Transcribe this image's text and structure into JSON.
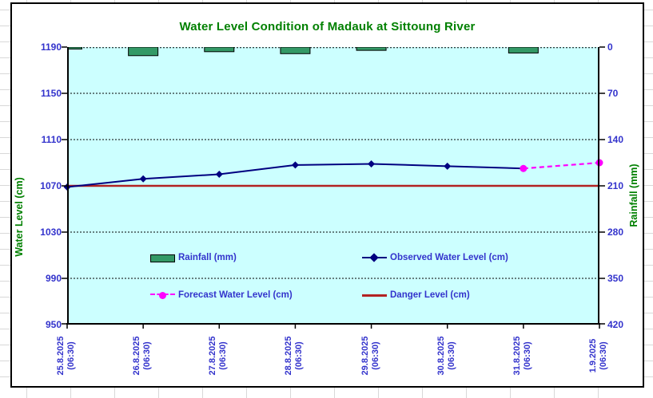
{
  "colors": {
    "title": "#008000",
    "axis_title": "#008000",
    "tick_label": "#3333CC",
    "legend_text": "#3333CC",
    "sheet_gridline": "#D8D8D8",
    "plot_background": "#CCFFFF",
    "rainfall_bar": "#339966",
    "observed_line": "#000080",
    "forecast_line": "#FF00FF",
    "danger_line": "#B22222"
  },
  "chart_data": {
    "type": "combo",
    "title": "Water Level Condition of Madauk at Sittoung River",
    "legend_position": "inside-plot",
    "grid": "horizontal-dashed",
    "categories": [
      {
        "date": "25.8.2025",
        "time": "(06:30)"
      },
      {
        "date": "26.8.2025",
        "time": "(06:30)"
      },
      {
        "date": "27.8.2025",
        "time": "(06:30)"
      },
      {
        "date": "28.8.2025",
        "time": "(06:30)"
      },
      {
        "date": "29.8.2025",
        "time": "(06:30)"
      },
      {
        "date": "30.8.2025",
        "time": "(06:30)"
      },
      {
        "date": "31.8.2025",
        "time": "(06:30)"
      },
      {
        "date": "1.9.2025",
        "time": "(06:30)"
      }
    ],
    "left_axis": {
      "title": "Water Level (cm)",
      "ticks": [
        1190,
        1150,
        1110,
        1070,
        1030,
        990,
        950
      ],
      "min": 950,
      "max": 1190
    },
    "right_axis": {
      "title": "Rainfall (mm)",
      "ticks": [
        0,
        70,
        140,
        210,
        280,
        350,
        420
      ],
      "min": 0,
      "max": 420,
      "inverted": true
    },
    "series": [
      {
        "name": "Rainfall (mm)",
        "type": "bar",
        "axis": "right",
        "color": "#339966",
        "values": [
          3,
          13,
          7,
          10,
          5,
          0,
          9,
          0
        ]
      },
      {
        "name": "Observed Water Level (cm)",
        "type": "line",
        "axis": "left",
        "color": "#000080",
        "marker": "diamond",
        "values": [
          1069,
          1076,
          1080,
          1088,
          1089,
          1087,
          1085,
          null
        ]
      },
      {
        "name": "Forecast Water Level (cm)",
        "type": "line",
        "axis": "left",
        "color": "#FF00FF",
        "dashed": true,
        "marker": "circle",
        "values": [
          null,
          null,
          null,
          null,
          null,
          null,
          1085,
          1090
        ]
      },
      {
        "name": "Danger Level (cm)",
        "type": "line",
        "axis": "left",
        "color": "#B22222",
        "constant": 1070
      }
    ]
  }
}
